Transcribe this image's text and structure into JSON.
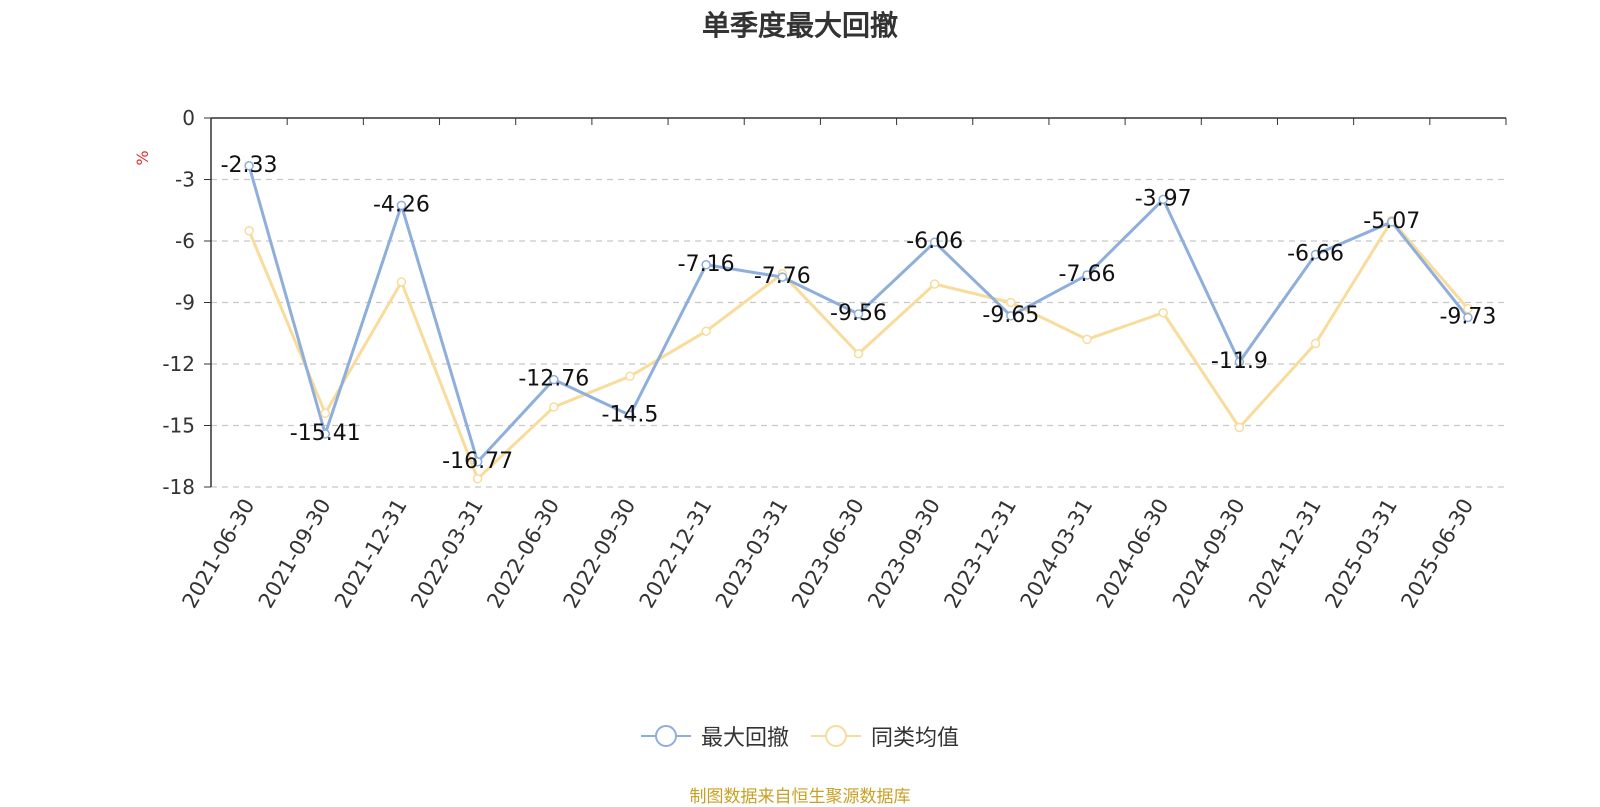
{
  "chart_data": {
    "type": "line",
    "title": "单季度最大回撤",
    "y_unit": "%",
    "ylim": [
      -18,
      0
    ],
    "yticks": [
      0,
      -3,
      -6,
      -9,
      -12,
      -15,
      -18
    ],
    "grid": true,
    "legend_position": "bottom",
    "categories": [
      "2021-06-30",
      "2021-09-30",
      "2021-12-31",
      "2022-03-31",
      "2022-06-30",
      "2022-09-30",
      "2022-12-31",
      "2023-03-31",
      "2023-06-30",
      "2023-09-30",
      "2023-12-31",
      "2024-03-31",
      "2024-06-30",
      "2024-09-30",
      "2024-12-31",
      "2025-03-31",
      "2025-06-30"
    ],
    "series": [
      {
        "name": "最大回撤",
        "color": "#8eaedb",
        "values": [
          -2.33,
          -15.41,
          -4.26,
          -16.77,
          -12.76,
          -14.5,
          -7.16,
          -7.76,
          -9.56,
          -6.06,
          -9.65,
          -7.66,
          -3.97,
          -11.9,
          -6.66,
          -5.07,
          -9.73
        ],
        "labels": [
          "-2.33",
          "-15.41",
          "-4.26",
          "-16.77",
          "-12.76",
          "-14.5",
          "-7.16",
          "-7.76",
          "-9.56",
          "-6.06",
          "-9.65",
          "-7.66",
          "-3.97",
          "-11.9",
          "-6.66",
          "-5.07",
          "-9.73"
        ]
      },
      {
        "name": "同类均值",
        "color": "#f9dc9c",
        "values": [
          -5.5,
          -14.4,
          -8.0,
          -17.6,
          -14.1,
          -12.6,
          -10.4,
          -7.6,
          -11.5,
          -8.1,
          -9.0,
          -10.8,
          -9.5,
          -15.1,
          -11.0,
          -5.0,
          -9.3
        ]
      }
    ]
  },
  "source_text": "制图数据来自恒生聚源数据库"
}
